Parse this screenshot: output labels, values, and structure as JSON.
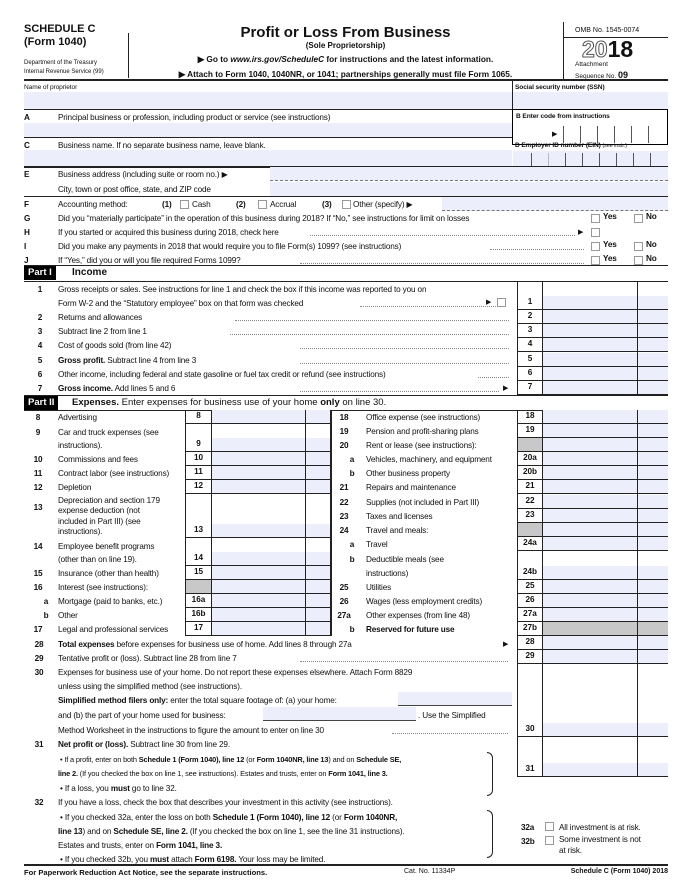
{
  "header": {
    "schedule": "SCHEDULE C",
    "form": "(Form 1040)",
    "dept": "Department of the Treasury",
    "irs": "Internal Revenue Service (99)",
    "title": "Profit or Loss From Business",
    "subtitle": "(Sole Proprietorship)",
    "goto_pre": "▶ Go to ",
    "goto_url": "www.irs.gov/ScheduleC",
    "goto_post": " for instructions and the latest information.",
    "attach": "▶ Attach to Form 1040, 1040NR, or 1041; partnerships generally must file Form 1065.",
    "omb": "OMB No. 1545-0074",
    "year_outline": "20",
    "year_bold": "18",
    "attachment": "Attachment",
    "sequence": "Sequence No.",
    "seq_no": "09"
  },
  "ident": {
    "name_label": "Name of proprietor",
    "ssn_label": "Social security number (SSN)",
    "a_letter": "A",
    "a_label": "Principal business or profession, including product or service (see instructions)",
    "b_letter": "B",
    "b_label": "Enter code from instructions",
    "c_letter": "C",
    "c_label": "Business name. If no separate business name, leave blank.",
    "d_letter": "D",
    "d_label": "Employer ID number (EIN)",
    "d_note": "(see instr.)",
    "e_letter": "E",
    "e_label1": "Business address (including suite or room no.) ▶",
    "e_label2": "City, town or post office, state, and ZIP code"
  },
  "questions": {
    "yes": "Yes",
    "no": "No",
    "f": {
      "letter": "F",
      "label": "Accounting method:",
      "options": [
        {
          "num": "(1)",
          "label": "Cash"
        },
        {
          "num": "(2)",
          "label": "Accrual"
        },
        {
          "num": "(3)",
          "label": "Other (specify) ▶"
        }
      ]
    },
    "g": {
      "letter": "G",
      "label": "Did you “materially participate” in the operation of this business during 2018? If “No,” see instructions for limit on losses"
    },
    "h": {
      "letter": "H",
      "label": "If you started or acquired this business during 2018, check here"
    },
    "i": {
      "letter": "I",
      "label": "Did you make any payments in 2018 that would require you to file Form(s) 1099? (see instructions)"
    },
    "j": {
      "letter": "J",
      "label": "If “Yes,” did you or will you file required Forms 1099?"
    }
  },
  "part1": {
    "tag": "Part I",
    "title": "Income",
    "lines": [
      {
        "num": "1",
        "box": "1",
        "text": [
          [
            {
              "t": "Gross receipts or sales. See instructions for line 1 and check the box if this income was reported to you on"
            }
          ],
          [
            {
              "t": "Form W-2 and the “Statutory employee” box on that form was checked"
            }
          ]
        ]
      },
      {
        "num": "2",
        "box": "2",
        "text": [
          [
            {
              "t": "Returns and allowances"
            }
          ]
        ]
      },
      {
        "num": "3",
        "box": "3",
        "text": [
          [
            {
              "t": "Subtract line 2 from line 1"
            }
          ]
        ]
      },
      {
        "num": "4",
        "box": "4",
        "text": [
          [
            {
              "t": "Cost of goods sold (from line 42)"
            }
          ]
        ]
      },
      {
        "num": "5",
        "box": "5",
        "text": [
          [
            {
              "t": "Gross profit.",
              "b": true
            },
            {
              "t": "  Subtract line 4 from line 3"
            }
          ]
        ]
      },
      {
        "num": "6",
        "box": "6",
        "text": [
          [
            {
              "t": "Other income, including federal and state gasoline or fuel tax credit or refund (see instructions)"
            }
          ]
        ]
      },
      {
        "num": "7",
        "box": "7",
        "text": [
          [
            {
              "t": "Gross income.",
              "b": true
            },
            {
              "t": "  Add lines 5 and 6"
            }
          ]
        ]
      }
    ]
  },
  "part2": {
    "tag": "Part II",
    "title_bold": "Expenses.",
    "title_rest": " Enter expenses for business use of your home ",
    "title_only": "only",
    "title_end": " on line 30.",
    "left": [
      {
        "num": "8",
        "box": "8",
        "text": [
          "Advertising"
        ]
      },
      {
        "num": "9",
        "box": "9",
        "text": [
          "Car and truck expenses (see",
          "instructions)."
        ]
      },
      {
        "num": "10",
        "box": "10",
        "text": [
          "Commissions and fees"
        ]
      },
      {
        "num": "11",
        "box": "11",
        "text": [
          "Contract labor (see instructions)"
        ]
      },
      {
        "num": "12",
        "box": "12",
        "text": [
          "Depletion"
        ]
      },
      {
        "num": "13",
        "box": "13",
        "text": [
          "Depreciation and section 179",
          "expense   deduction   (not",
          "included  in  Part  III)  (see",
          "instructions)."
        ]
      },
      {
        "num": "14",
        "box": "14",
        "text": [
          "Employee benefit programs",
          "(other than on line 19)."
        ]
      },
      {
        "num": "15",
        "box": "15",
        "text": [
          "Insurance (other than health)"
        ]
      },
      {
        "num": "16",
        "box": "",
        "text": [
          "Interest (see instructions):"
        ]
      },
      {
        "num": "a",
        "box": "16a",
        "text": [
          "Mortgage (paid to banks, etc.)"
        ]
      },
      {
        "num": "b",
        "box": "16b",
        "text": [
          "Other"
        ]
      },
      {
        "num": "17",
        "box": "17",
        "text": [
          "Legal and professional services"
        ]
      }
    ],
    "right": [
      {
        "num": "18",
        "box": "18",
        "text": [
          "Office expense (see instructions)"
        ]
      },
      {
        "num": "19",
        "box": "19",
        "text": [
          "Pension and profit-sharing plans"
        ]
      },
      {
        "num": "20",
        "box": "",
        "text": [
          "Rent or lease (see instructions):"
        ]
      },
      {
        "num": "a",
        "box": "20a",
        "text": [
          "Vehicles, machinery, and equipment"
        ]
      },
      {
        "num": "b",
        "box": "20b",
        "text": [
          "Other business property"
        ]
      },
      {
        "num": "21",
        "box": "21",
        "text": [
          "Repairs and maintenance"
        ]
      },
      {
        "num": "22",
        "box": "22",
        "text": [
          "Supplies (not included in Part III)"
        ]
      },
      {
        "num": "23",
        "box": "23",
        "text": [
          "Taxes and licenses"
        ]
      },
      {
        "num": "24",
        "box": "",
        "text": [
          "Travel and meals:"
        ]
      },
      {
        "num": "a",
        "box": "24a",
        "text": [
          "Travel"
        ]
      },
      {
        "num": "b",
        "box": "24b",
        "text": [
          "Deductible meals (see",
          "instructions)"
        ]
      },
      {
        "num": "25",
        "box": "25",
        "text": [
          "Utilities"
        ]
      },
      {
        "num": "26",
        "box": "26",
        "text": [
          "Wages (less employment credits)"
        ]
      },
      {
        "num": "27a",
        "box": "27a",
        "text": [
          "Other expenses (from line 48)"
        ]
      },
      {
        "num": "b",
        "box": "27b",
        "text": [
          "Reserved for future use"
        ]
      }
    ]
  },
  "bottom": {
    "l28": {
      "num": "28",
      "box": "28",
      "bold": "Total expenses",
      "text": " before expenses for business use of home. Add lines 8 through 27a"
    },
    "l29": {
      "num": "29",
      "box": "29",
      "text": "Tentative profit or (loss). Subtract line 28 from line 7"
    },
    "l30": {
      "num": "30",
      "box": "30",
      "line1": "Expenses for business use of your home. Do not report these expenses elsewhere. Attach Form 8829",
      "line2": "unless using the simplified method (see instructions).",
      "sm_bold": "Simplified method filers only:",
      "sm_text": " enter the total square footage of: (a) your home:",
      "line4a": "and (b) the part of your home used for business:",
      "line4b": ". Use the Simplified",
      "line5": "Method Worksheet in the instructions to figure the amount to enter on line 30"
    },
    "l31": {
      "num": "31",
      "box": "31",
      "bold": "Net profit or (loss).",
      "text": "  Subtract line 30 from line 29.",
      "b1": [
        {
          "t": "•  If a profit, enter on both "
        },
        {
          "t": "Schedule 1 (Form 1040), line 12",
          "b": true
        },
        {
          "t": " (or "
        },
        {
          "t": "Form 1040NR, line 13",
          "b": true
        },
        {
          "t": ") and on "
        },
        {
          "t": "Schedule SE,",
          "b": true
        }
      ],
      "b1b": [
        {
          "t": "line 2.",
          "b": true
        },
        {
          "t": " (If you checked the box on line 1, see instructions). Estates and trusts, enter on "
        },
        {
          "t": "Form 1041, line 3.",
          "b": true
        }
      ],
      "b2": [
        {
          "t": "•  If a loss, you "
        },
        {
          "t": "must",
          "b": true
        },
        {
          "t": "  go to line 32."
        }
      ]
    },
    "l32": {
      "num": "32",
      "text": "If you have a loss, check the box that describes your investment in this activity (see instructions).",
      "b1": [
        {
          "t": "•  If you checked 32a, enter the loss on both "
        },
        {
          "t": "Schedule 1 (Form 1040), line 12",
          "b": true
        },
        {
          "t": " (or "
        },
        {
          "t": "Form 1040NR,",
          "b": true
        }
      ],
      "b1b": [
        {
          "t": "line 13",
          "b": true
        },
        {
          "t": ") and on "
        },
        {
          "t": "Schedule SE, line 2.",
          "b": true
        },
        {
          "t": " (If you checked the box on line 1, see the line 31 instructions)."
        }
      ],
      "b1c": [
        {
          "t": "Estates and trusts, enter on "
        },
        {
          "t": "Form 1041, line 3.",
          "b": true
        }
      ],
      "b2": [
        {
          "t": "•  If you checked 32b, you "
        },
        {
          "t": "must",
          "b": true
        },
        {
          "t": " attach "
        },
        {
          "t": "Form 6198.",
          "b": true
        },
        {
          "t": " Your loss may be limited."
        }
      ],
      "a_label": "32a",
      "a_text": "All investment is at risk.",
      "b_label": "32b",
      "b_text1": "Some investment is not",
      "b_text2": "at risk."
    }
  },
  "footer": {
    "left": "For Paperwork Reduction Act Notice, see the separate instructions.",
    "cat": "Cat. No. 11334P",
    "right": "Schedule C (Form 1040) 2018"
  },
  "colors": {
    "field": "#eceffb",
    "shaded": "#c8c8c8"
  }
}
